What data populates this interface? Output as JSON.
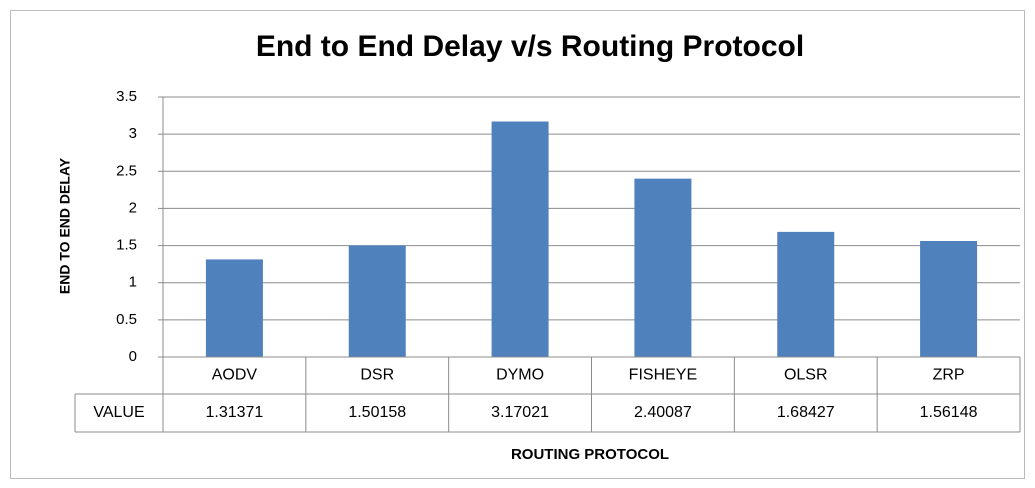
{
  "chart_data": {
    "type": "bar",
    "title": "End to End Delay v/s Routing Protocol",
    "ylabel": "END TO END DELAY",
    "xlabel": "ROUTING PROTOCOL",
    "categories": [
      "AODV",
      "DSR",
      "DYMO",
      "FISHEYE",
      "OLSR",
      "ZRP"
    ],
    "series": [
      {
        "name": "VALUE",
        "color": "#4f81bd",
        "values": [
          1.31371,
          1.50158,
          3.17021,
          2.40087,
          1.68427,
          1.56148
        ]
      }
    ],
    "ylim": [
      0,
      3.5
    ],
    "yticks": [
      0,
      0.5,
      1,
      1.5,
      2,
      2.5,
      3,
      3.5
    ],
    "grid": true
  }
}
